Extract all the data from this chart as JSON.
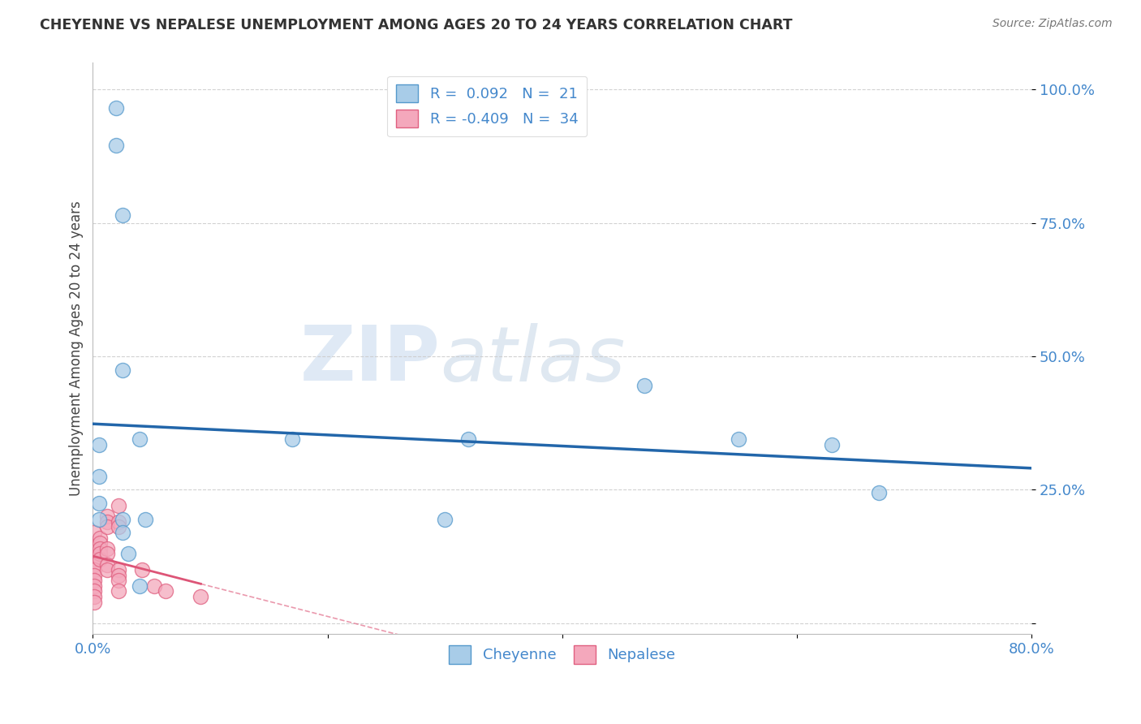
{
  "title": "CHEYENNE VS NEPALESE UNEMPLOYMENT AMONG AGES 20 TO 24 YEARS CORRELATION CHART",
  "source": "Source: ZipAtlas.com",
  "ylabel": "Unemployment Among Ages 20 to 24 years",
  "xlim": [
    0,
    0.8
  ],
  "ylim": [
    -0.02,
    1.05
  ],
  "cheyenne_color": "#A8CCE8",
  "nepalese_color": "#F4A8BC",
  "cheyenne_edge_color": "#5599CC",
  "nepalese_edge_color": "#E06080",
  "cheyenne_line_color": "#2266AA",
  "nepalese_line_color": "#DD5577",
  "cheyenne_R": 0.092,
  "cheyenne_N": 21,
  "nepalese_R": -0.409,
  "nepalese_N": 34,
  "cheyenne_x": [
    0.005,
    0.02,
    0.02,
    0.025,
    0.025,
    0.04,
    0.005,
    0.005,
    0.005,
    0.3,
    0.32,
    0.55,
    0.63,
    0.47,
    0.17,
    0.025,
    0.025,
    0.03,
    0.04,
    0.045,
    0.67
  ],
  "cheyenne_y": [
    0.335,
    0.965,
    0.895,
    0.765,
    0.475,
    0.345,
    0.275,
    0.225,
    0.195,
    0.195,
    0.345,
    0.345,
    0.335,
    0.445,
    0.345,
    0.195,
    0.17,
    0.13,
    0.07,
    0.195,
    0.245
  ],
  "nepalese_x": [
    0.001,
    0.001,
    0.001,
    0.001,
    0.001,
    0.001,
    0.001,
    0.001,
    0.001,
    0.001,
    0.001,
    0.006,
    0.006,
    0.006,
    0.006,
    0.006,
    0.012,
    0.012,
    0.012,
    0.012,
    0.012,
    0.012,
    0.012,
    0.022,
    0.022,
    0.022,
    0.022,
    0.022,
    0.022,
    0.022,
    0.042,
    0.052,
    0.062,
    0.092
  ],
  "nepalese_y": [
    0.14,
    0.12,
    0.11,
    0.1,
    0.09,
    0.08,
    0.07,
    0.06,
    0.05,
    0.04,
    0.17,
    0.16,
    0.15,
    0.14,
    0.13,
    0.12,
    0.2,
    0.19,
    0.18,
    0.14,
    0.13,
    0.11,
    0.1,
    0.22,
    0.19,
    0.18,
    0.1,
    0.09,
    0.08,
    0.06,
    0.1,
    0.07,
    0.06,
    0.05
  ],
  "background_color": "#FFFFFF",
  "grid_color": "#CCCCCC",
  "watermark_zip": "ZIP",
  "watermark_atlas": "atlas",
  "yticks": [
    0.0,
    0.25,
    0.5,
    0.75,
    1.0
  ],
  "ytick_labels": [
    "",
    "25.0%",
    "50.0%",
    "75.0%",
    "100.0%"
  ],
  "xticks": [
    0.0,
    0.2,
    0.4,
    0.6,
    0.8
  ],
  "xtick_labels": [
    "0.0%",
    "",
    "",
    "",
    "80.0%"
  ]
}
